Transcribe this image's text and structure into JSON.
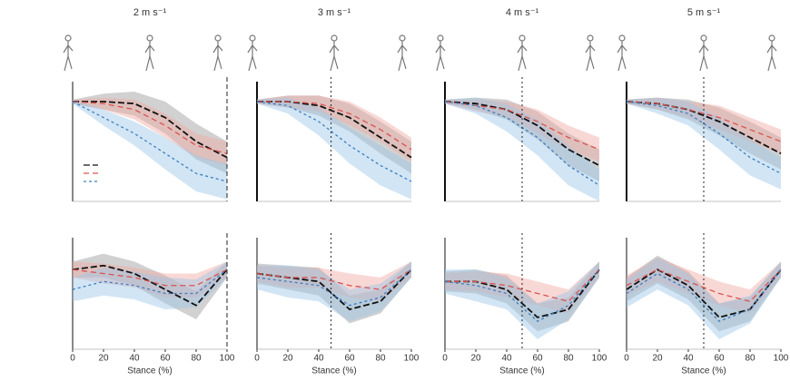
{
  "chart_data": [
    {
      "type": "line",
      "title": "2 m s⁻¹",
      "x": [
        0,
        20,
        40,
        60,
        80,
        100
      ],
      "xlim": [
        0,
        100
      ],
      "ylim": [
        -1.5,
        1.5
      ],
      "toe_off": 100,
      "series": [
        {
          "color": "#111111",
          "band_color": "#9a9a9a",
          "values": [
            1,
            1,
            0.95,
            0.6,
            0,
            -0.4
          ],
          "band": [
            0.05,
            0.2,
            0.3,
            0.4,
            0.45,
            0.4
          ]
        },
        {
          "color": "#d9534f",
          "band_color": "#f0a8a2",
          "values": [
            1,
            0.95,
            0.8,
            0.4,
            -0.1,
            -0.3
          ],
          "band": [
            0.05,
            0.15,
            0.25,
            0.3,
            0.3,
            0.3
          ]
        },
        {
          "color": "#3a7fc1",
          "band_color": "#9cc6e6",
          "values": [
            1,
            0.6,
            0.2,
            -0.3,
            -0.8,
            -1.0
          ],
          "band": [
            0.05,
            0.2,
            0.3,
            0.4,
            0.45,
            0.45
          ]
        }
      ]
    },
    {
      "type": "line",
      "title": "3 m s⁻¹",
      "x": [
        0,
        20,
        40,
        60,
        80,
        100
      ],
      "xlim": [
        0,
        100
      ],
      "ylim": [
        -1.5,
        1.5
      ],
      "toe_off": 48,
      "series": [
        {
          "color": "#111111",
          "band_color": "#9a9a9a",
          "values": [
            1,
            1,
            0.9,
            0.6,
            0.1,
            -0.4
          ],
          "band": [
            0.05,
            0.15,
            0.25,
            0.35,
            0.4,
            0.4
          ]
        },
        {
          "color": "#d9534f",
          "band_color": "#f0a8a2",
          "values": [
            1,
            1,
            0.95,
            0.7,
            0.3,
            -0.2
          ],
          "band": [
            0.05,
            0.15,
            0.2,
            0.3,
            0.3,
            0.3
          ]
        },
        {
          "color": "#3a7fc1",
          "band_color": "#9cc6e6",
          "values": [
            1,
            0.9,
            0.5,
            -0.1,
            -0.6,
            -1.0
          ],
          "band": [
            0.05,
            0.2,
            0.35,
            0.45,
            0.5,
            0.45
          ]
        }
      ]
    },
    {
      "type": "line",
      "title": "4 m s⁻¹",
      "x": [
        0,
        20,
        40,
        60,
        80,
        100
      ],
      "xlim": [
        0,
        100
      ],
      "ylim": [
        -1.5,
        1.5
      ],
      "toe_off": 50,
      "series": [
        {
          "color": "#111111",
          "band_color": "#9a9a9a",
          "values": [
            1,
            0.95,
            0.8,
            0.4,
            -0.2,
            -0.6
          ],
          "band": [
            0.05,
            0.15,
            0.25,
            0.35,
            0.4,
            0.4
          ]
        },
        {
          "color": "#d9534f",
          "band_color": "#f0a8a2",
          "values": [
            1,
            0.9,
            0.8,
            0.5,
            0.1,
            -0.2
          ],
          "band": [
            0.05,
            0.15,
            0.2,
            0.3,
            0.3,
            0.3
          ]
        },
        {
          "color": "#3a7fc1",
          "band_color": "#9cc6e6",
          "values": [
            1,
            0.9,
            0.6,
            0.1,
            -0.6,
            -1.1
          ],
          "band": [
            0.05,
            0.2,
            0.35,
            0.45,
            0.5,
            0.4
          ]
        }
      ]
    },
    {
      "type": "line",
      "title": "5 m s⁻¹",
      "x": [
        0,
        20,
        40,
        60,
        80,
        100
      ],
      "xlim": [
        0,
        100
      ],
      "ylim": [
        -1.5,
        1.5
      ],
      "toe_off": 50,
      "series": [
        {
          "color": "#111111",
          "band_color": "#9a9a9a",
          "values": [
            1,
            0.95,
            0.8,
            0.5,
            0.1,
            -0.3
          ],
          "band": [
            0.05,
            0.15,
            0.25,
            0.35,
            0.4,
            0.4
          ]
        },
        {
          "color": "#d9534f",
          "band_color": "#f0a8a2",
          "values": [
            1,
            0.95,
            0.8,
            0.6,
            0.3,
            0
          ],
          "band": [
            0.05,
            0.15,
            0.2,
            0.3,
            0.3,
            0.3
          ]
        },
        {
          "color": "#3a7fc1",
          "band_color": "#9cc6e6",
          "values": [
            1,
            0.9,
            0.7,
            0.2,
            -0.4,
            -0.8
          ],
          "band": [
            0.05,
            0.2,
            0.3,
            0.4,
            0.45,
            0.4
          ]
        }
      ]
    },
    {
      "type": "line",
      "xlabel": "Stance (%)",
      "x": [
        0,
        20,
        40,
        60,
        80,
        100
      ],
      "xlim": [
        0,
        100
      ],
      "ylim": [
        -2,
        0.8
      ],
      "xticks": [
        0,
        20,
        40,
        60,
        80,
        100
      ],
      "toe_off": 100,
      "series": [
        {
          "color": "#111111",
          "band_color": "#9a9a9a",
          "values": [
            0,
            0.1,
            -0.1,
            -0.5,
            -0.9,
            0
          ],
          "band": [
            0.2,
            0.3,
            0.3,
            0.35,
            0.35,
            0.2
          ]
        },
        {
          "color": "#d9534f",
          "band_color": "#f0a8a2",
          "values": [
            0,
            -0.1,
            -0.2,
            -0.4,
            -0.4,
            0
          ],
          "band": [
            0.2,
            0.25,
            0.25,
            0.3,
            0.3,
            0.2
          ]
        },
        {
          "color": "#3a7fc1",
          "band_color": "#9cc6e6",
          "values": [
            -0.5,
            -0.3,
            -0.4,
            -0.6,
            -0.6,
            0
          ],
          "band": [
            0.3,
            0.35,
            0.35,
            0.4,
            0.35,
            0.2
          ]
        }
      ]
    },
    {
      "type": "line",
      "xlabel": "Stance (%)",
      "x": [
        0,
        20,
        40,
        60,
        80,
        100
      ],
      "xlim": [
        0,
        100
      ],
      "ylim": [
        -2,
        0.8
      ],
      "xticks": [
        0,
        20,
        40,
        60,
        80,
        100
      ],
      "toe_off": 48,
      "series": [
        {
          "color": "#111111",
          "band_color": "#9a9a9a",
          "values": [
            -0.1,
            -0.2,
            -0.3,
            -1.0,
            -0.8,
            0
          ],
          "band": [
            0.25,
            0.3,
            0.35,
            0.35,
            0.3,
            0.2
          ]
        },
        {
          "color": "#d9534f",
          "band_color": "#f0a8a2",
          "values": [
            -0.1,
            -0.2,
            -0.2,
            -0.4,
            -0.5,
            0
          ],
          "band": [
            0.2,
            0.25,
            0.25,
            0.3,
            0.3,
            0.2
          ]
        },
        {
          "color": "#3a7fc1",
          "band_color": "#9cc6e6",
          "values": [
            -0.2,
            -0.3,
            -0.4,
            -0.9,
            -0.7,
            0
          ],
          "band": [
            0.3,
            0.4,
            0.4,
            0.4,
            0.35,
            0.2
          ]
        }
      ]
    },
    {
      "type": "line",
      "xlabel": "Stance (%)",
      "x": [
        0,
        20,
        40,
        60,
        80,
        100
      ],
      "xlim": [
        0,
        100
      ],
      "ylim": [
        -2,
        0.8
      ],
      "xticks": [
        0,
        20,
        40,
        60,
        80,
        100
      ],
      "toe_off": 50,
      "series": [
        {
          "color": "#111111",
          "band_color": "#9a9a9a",
          "values": [
            -0.3,
            -0.3,
            -0.5,
            -1.2,
            -1.0,
            0
          ],
          "band": [
            0.25,
            0.3,
            0.35,
            0.35,
            0.3,
            0.2
          ]
        },
        {
          "color": "#d9534f",
          "band_color": "#f0a8a2",
          "values": [
            -0.3,
            -0.3,
            -0.4,
            -0.6,
            -0.8,
            0
          ],
          "band": [
            0.2,
            0.25,
            0.3,
            0.3,
            0.3,
            0.2
          ]
        },
        {
          "color": "#3a7fc1",
          "band_color": "#9cc6e6",
          "values": [
            -0.3,
            -0.4,
            -0.6,
            -1.3,
            -0.9,
            0
          ],
          "band": [
            0.3,
            0.4,
            0.4,
            0.45,
            0.35,
            0.2
          ]
        }
      ]
    },
    {
      "type": "line",
      "xlabel": "Stance (%)",
      "x": [
        0,
        20,
        40,
        60,
        80,
        100
      ],
      "xlim": [
        0,
        100
      ],
      "ylim": [
        -2,
        0.8
      ],
      "xticks": [
        0,
        20,
        40,
        60,
        80,
        100
      ],
      "toe_off": 50,
      "series": [
        {
          "color": "#111111",
          "band_color": "#9a9a9a",
          "values": [
            -0.5,
            0,
            -0.4,
            -1.2,
            -1.0,
            0
          ],
          "band": [
            0.3,
            0.35,
            0.35,
            0.35,
            0.3,
            0.2
          ]
        },
        {
          "color": "#d9534f",
          "band_color": "#f0a8a2",
          "values": [
            -0.4,
            0,
            -0.3,
            -0.6,
            -0.8,
            0
          ],
          "band": [
            0.25,
            0.3,
            0.3,
            0.3,
            0.3,
            0.2
          ]
        },
        {
          "color": "#3a7fc1",
          "band_color": "#9cc6e6",
          "values": [
            -0.6,
            -0.1,
            -0.5,
            -1.3,
            -1.0,
            0
          ],
          "band": [
            0.35,
            0.4,
            0.4,
            0.45,
            0.35,
            0.2
          ]
        }
      ]
    }
  ]
}
